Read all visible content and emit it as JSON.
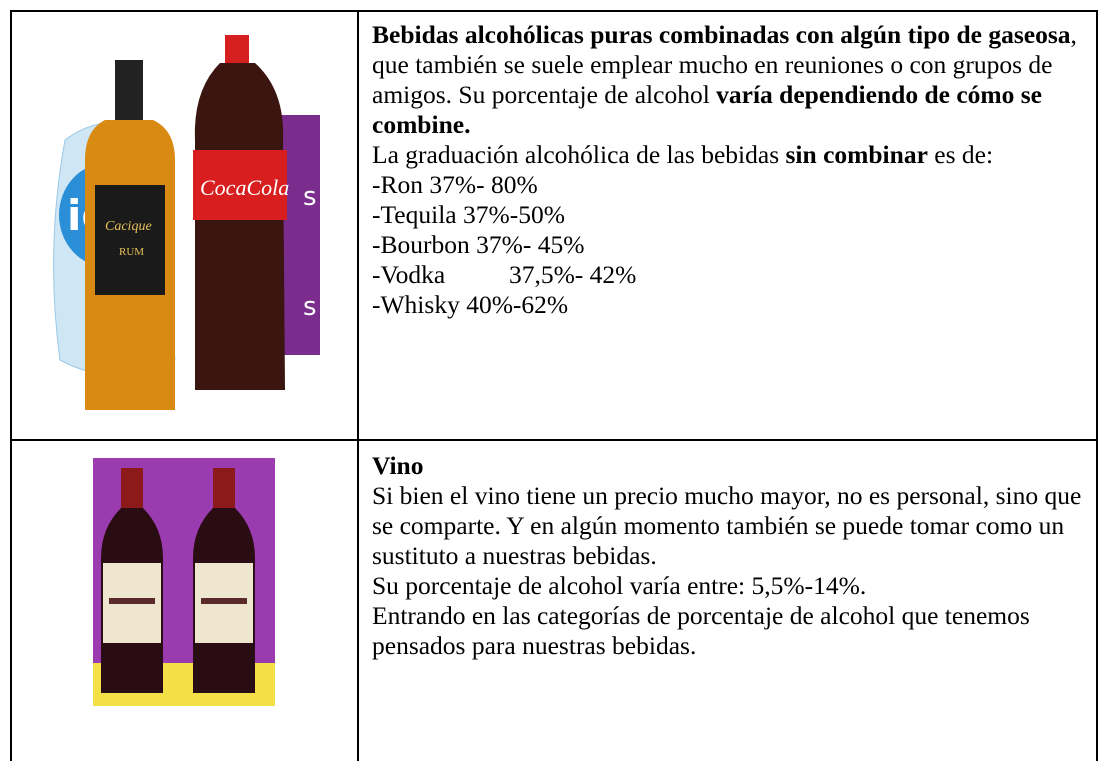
{
  "table": {
    "rows": [
      {
        "paragraphs": [
          [
            {
              "text": "Bebidas alcohólicas puras combinadas con algún tipo de gaseosa",
              "bold": true
            },
            {
              "text": ", que también se suele emplear mucho en reuniones o con grupos de amigos. Su porcentaje de alcohol ",
              "bold": false
            },
            {
              "text": "varía dependiendo de cómo se combine.",
              "bold": true
            }
          ],
          [
            {
              "text": "La graduación alcohólica de las bebidas ",
              "bold": false
            },
            {
              "text": "sin combinar",
              "bold": true
            },
            {
              "text": " es de:",
              "bold": false
            }
          ],
          [
            {
              "text": "-Ron 37%- 80%",
              "bold": false
            }
          ],
          [
            {
              "text": "-Tequila 37%-50%",
              "bold": false
            }
          ],
          [
            {
              "text": "-Bourbon 37%- 45%",
              "bold": false
            }
          ],
          [
            {
              "text": "-Vodka          37,5%- 42%",
              "bold": false
            }
          ],
          [
            {
              "text": "-Whisky 40%-62%",
              "bold": false
            }
          ]
        ]
      },
      {
        "paragraphs": [
          [
            {
              "text": "Vino",
              "bold": true
            }
          ],
          [
            {
              "text": "Si bien el vino tiene un precio mucho mayor, no es personal, sino que se comparte. Y en algún momento también se puede tomar como un sustituto a nuestras bebidas.",
              "bold": false
            }
          ],
          [
            {
              "text": "Su porcentaje de alcohol varía entre: 5,5%-14%.",
              "bold": false
            }
          ],
          [
            {
              "text": "Entrando en las categorías de porcentaje de alcohol que tenemos pensados para nuestras bebidas.",
              "bold": false
            }
          ]
        ]
      }
    ]
  }
}
